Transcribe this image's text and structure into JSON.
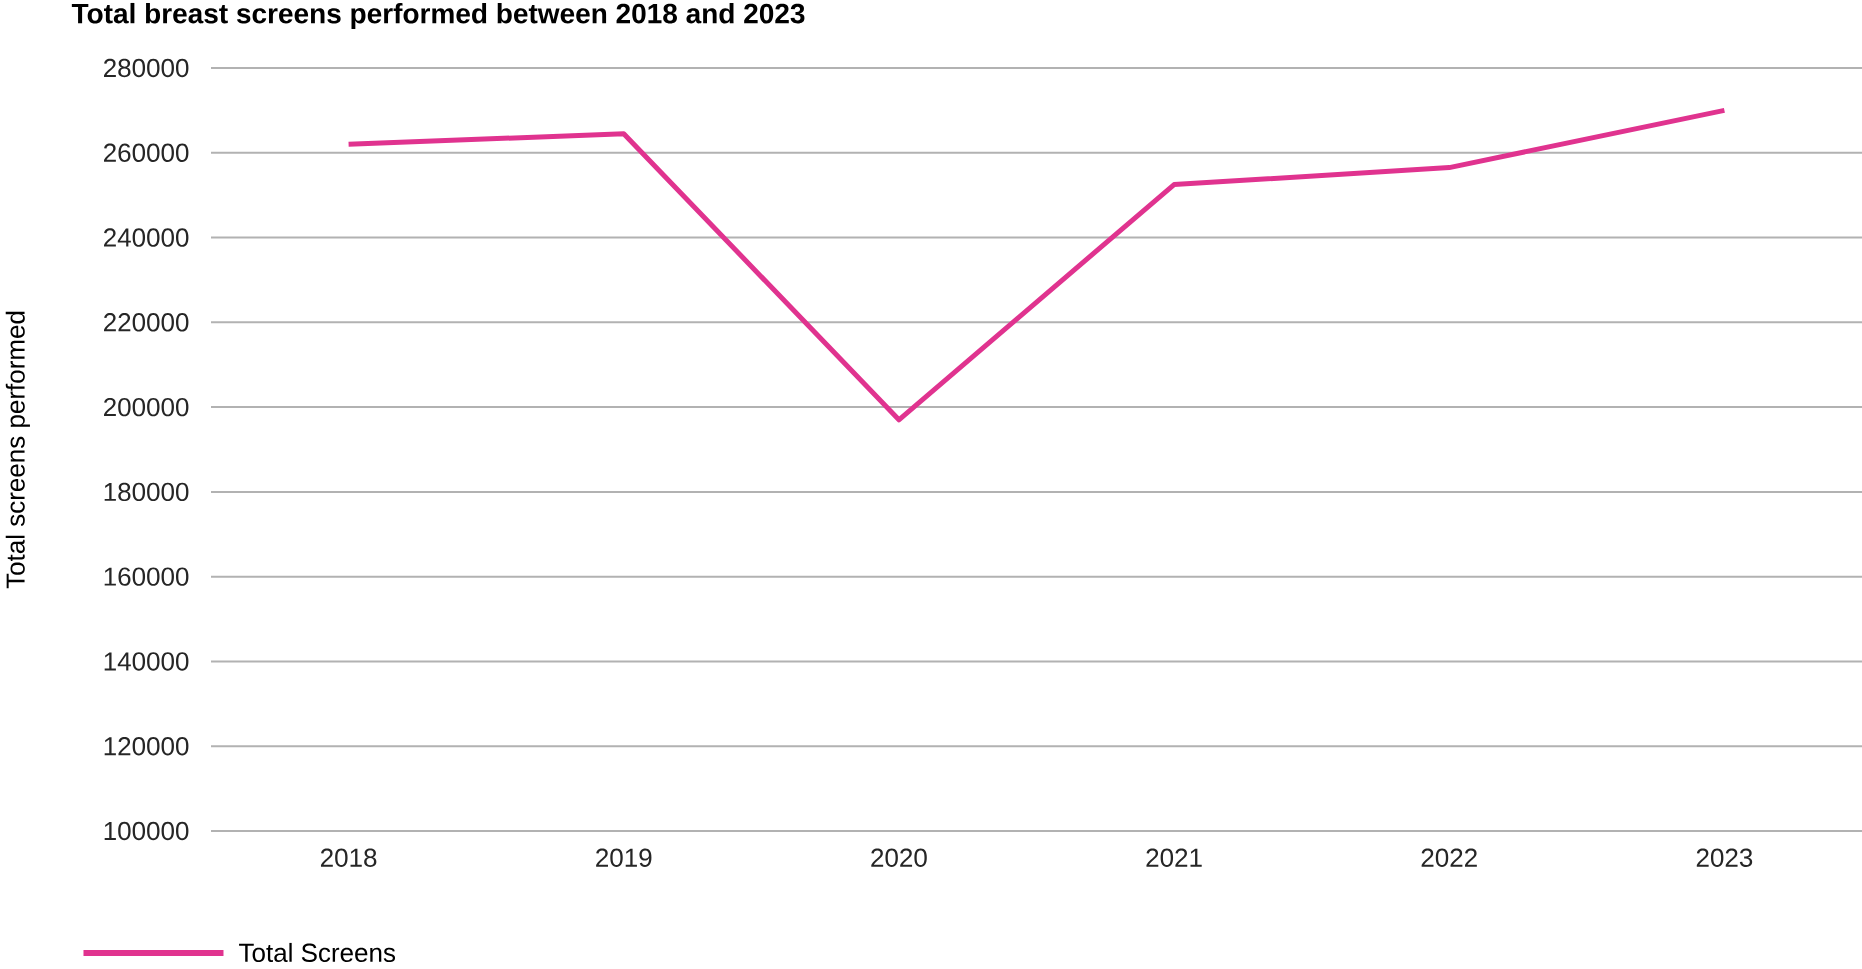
{
  "chart_data": {
    "type": "line",
    "title": "Total breast screens performed between 2018 and 2023",
    "ylabel": "Total screens performed",
    "categories": [
      "2018",
      "2019",
      "2020",
      "2021",
      "2022",
      "2023"
    ],
    "series": [
      {
        "name": "Total Screens",
        "color": "#e0338f",
        "values": [
          262000,
          264500,
          197000,
          252500,
          256500,
          270000
        ]
      }
    ],
    "ylim": [
      100000,
      280000
    ],
    "yticks": [
      100000,
      120000,
      140000,
      160000,
      180000,
      200000,
      220000,
      240000,
      260000,
      280000
    ],
    "grid": "y",
    "legend": "bottom left",
    "marker": "none",
    "line_style": "solid"
  }
}
